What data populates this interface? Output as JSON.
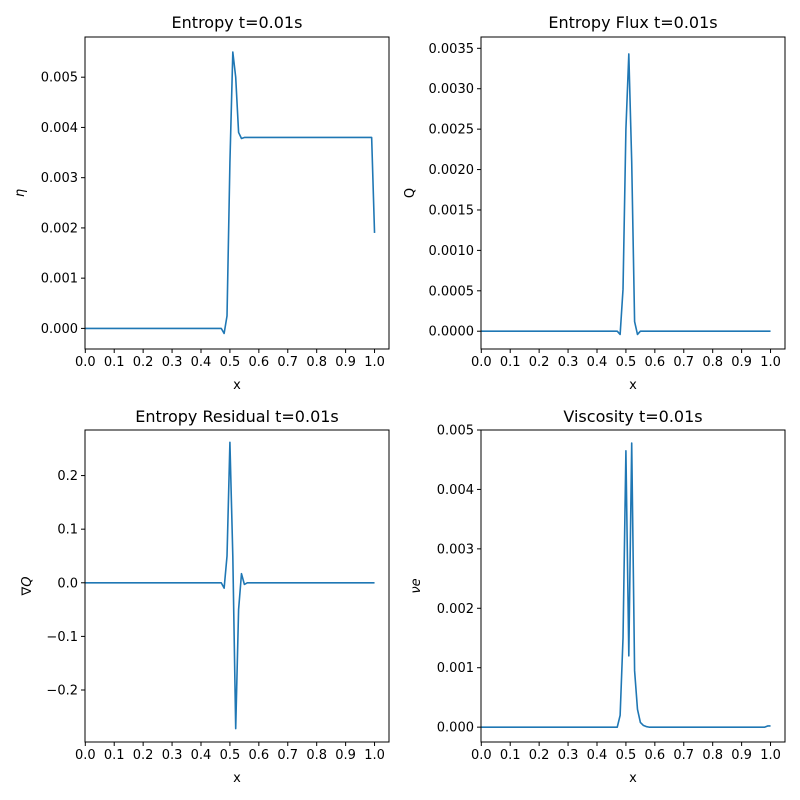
{
  "chart_data": [
    {
      "type": "line",
      "title": "Entropy t=0.01s",
      "xlabel": "x",
      "ylabel": "η",
      "xlim": [
        -0.001,
        1.05
      ],
      "ylim": [
        -0.00041,
        0.0058
      ],
      "xticks": [
        0.0,
        0.1,
        0.2,
        0.3,
        0.4,
        0.5,
        0.6,
        0.7,
        0.8,
        0.9,
        1.0
      ],
      "xtick_labels": [
        "0.0",
        "0.1",
        "0.2",
        "0.3",
        "0.4",
        "0.5",
        "0.6",
        "0.7",
        "0.8",
        "0.9",
        "1.0"
      ],
      "yticks": [
        0.0,
        0.001,
        0.002,
        0.003,
        0.004,
        0.005
      ],
      "ytick_labels": [
        "0.000",
        "0.001",
        "0.002",
        "0.003",
        "0.004",
        "0.005"
      ],
      "color": "#1f77b4",
      "x": [
        0.0,
        0.1,
        0.2,
        0.3,
        0.4,
        0.47,
        0.48,
        0.49,
        0.5,
        0.51,
        0.52,
        0.53,
        0.54,
        0.55,
        0.6,
        0.7,
        0.8,
        0.9,
        0.99,
        1.0
      ],
      "y": [
        0.0,
        0.0,
        0.0,
        0.0,
        0.0,
        0.0,
        -0.0001,
        0.00025,
        0.0033,
        0.0055,
        0.005,
        0.0039,
        0.00378,
        0.0038,
        0.0038,
        0.0038,
        0.0038,
        0.0038,
        0.0038,
        0.0019
      ]
    },
    {
      "type": "line",
      "title": "Entropy Flux t=0.01s",
      "xlabel": "x",
      "ylabel": "Q",
      "xlim": [
        -0.001,
        1.05
      ],
      "ylim": [
        -0.00022,
        0.00364
      ],
      "xticks": [
        0.0,
        0.1,
        0.2,
        0.3,
        0.4,
        0.5,
        0.6,
        0.7,
        0.8,
        0.9,
        1.0
      ],
      "xtick_labels": [
        "0.0",
        "0.1",
        "0.2",
        "0.3",
        "0.4",
        "0.5",
        "0.6",
        "0.7",
        "0.8",
        "0.9",
        "1.0"
      ],
      "yticks": [
        0.0,
        0.0005,
        0.001,
        0.0015,
        0.002,
        0.0025,
        0.003,
        0.0035
      ],
      "ytick_labels": [
        "0.0000",
        "0.0005",
        "0.0010",
        "0.0015",
        "0.0020",
        "0.0025",
        "0.0030",
        "0.0035"
      ],
      "color": "#1f77b4",
      "x": [
        0.0,
        0.1,
        0.2,
        0.3,
        0.4,
        0.47,
        0.48,
        0.49,
        0.5,
        0.51,
        0.52,
        0.53,
        0.54,
        0.55,
        0.6,
        0.7,
        0.8,
        0.9,
        1.0
      ],
      "y": [
        0.0,
        0.0,
        0.0,
        0.0,
        0.0,
        0.0,
        -4e-05,
        0.00052,
        0.0025,
        0.00343,
        0.0021,
        0.00012,
        -4e-05,
        0.0,
        0.0,
        0.0,
        0.0,
        0.0,
        0.0
      ]
    },
    {
      "type": "line",
      "title": "Entropy Residual t=0.01s",
      "xlabel": "x",
      "ylabel": "∇Q",
      "xlim": [
        -0.001,
        1.05
      ],
      "ylim": [
        -0.297,
        0.285
      ],
      "xticks": [
        0.0,
        0.1,
        0.2,
        0.3,
        0.4,
        0.5,
        0.6,
        0.7,
        0.8,
        0.9,
        1.0
      ],
      "xtick_labels": [
        "0.0",
        "0.1",
        "0.2",
        "0.3",
        "0.4",
        "0.5",
        "0.6",
        "0.7",
        "0.8",
        "0.9",
        "1.0"
      ],
      "yticks": [
        -0.2,
        -0.1,
        0.0,
        0.1,
        0.2
      ],
      "ytick_labels": [
        "−0.2",
        "−0.1",
        "0.0",
        "0.1",
        "0.2"
      ],
      "color": "#1f77b4",
      "x": [
        0.0,
        0.1,
        0.2,
        0.3,
        0.4,
        0.47,
        0.48,
        0.49,
        0.5,
        0.51,
        0.52,
        0.53,
        0.54,
        0.55,
        0.56,
        0.6,
        0.7,
        0.8,
        0.9,
        1.0
      ],
      "y": [
        0.0,
        0.0,
        0.0,
        0.0,
        0.0,
        0.0,
        -0.01,
        0.05,
        0.262,
        0.05,
        -0.272,
        -0.05,
        0.017,
        -0.003,
        0.0,
        0.0,
        0.0,
        0.0,
        0.0,
        0.0
      ]
    },
    {
      "type": "line",
      "title": "Viscosity t=0.01s",
      "xlabel": "x",
      "ylabel": "νe",
      "xlim": [
        -0.001,
        1.05
      ],
      "ylim": [
        -0.00025,
        0.005
      ],
      "xticks": [
        0.0,
        0.1,
        0.2,
        0.3,
        0.4,
        0.5,
        0.6,
        0.7,
        0.8,
        0.9,
        1.0
      ],
      "xtick_labels": [
        "0.0",
        "0.1",
        "0.2",
        "0.3",
        "0.4",
        "0.5",
        "0.6",
        "0.7",
        "0.8",
        "0.9",
        "1.0"
      ],
      "yticks": [
        0.0,
        0.001,
        0.002,
        0.003,
        0.004,
        0.005
      ],
      "ytick_labels": [
        "0.000",
        "0.001",
        "0.002",
        "0.003",
        "0.004",
        "0.005"
      ],
      "color": "#1f77b4",
      "x": [
        0.0,
        0.1,
        0.2,
        0.3,
        0.4,
        0.46,
        0.47,
        0.48,
        0.49,
        0.5,
        0.51,
        0.52,
        0.53,
        0.54,
        0.55,
        0.56,
        0.57,
        0.58,
        0.6,
        0.7,
        0.8,
        0.9,
        0.98,
        0.99,
        1.0
      ],
      "y": [
        0.0,
        0.0,
        0.0,
        0.0,
        0.0,
        0.0,
        0.0,
        0.0002,
        0.0015,
        0.00465,
        0.0012,
        0.00478,
        0.00095,
        0.0003,
        8e-05,
        3e-05,
        1e-05,
        0.0,
        0.0,
        0.0,
        0.0,
        0.0,
        0.0,
        2e-05,
        2e-05
      ]
    }
  ]
}
